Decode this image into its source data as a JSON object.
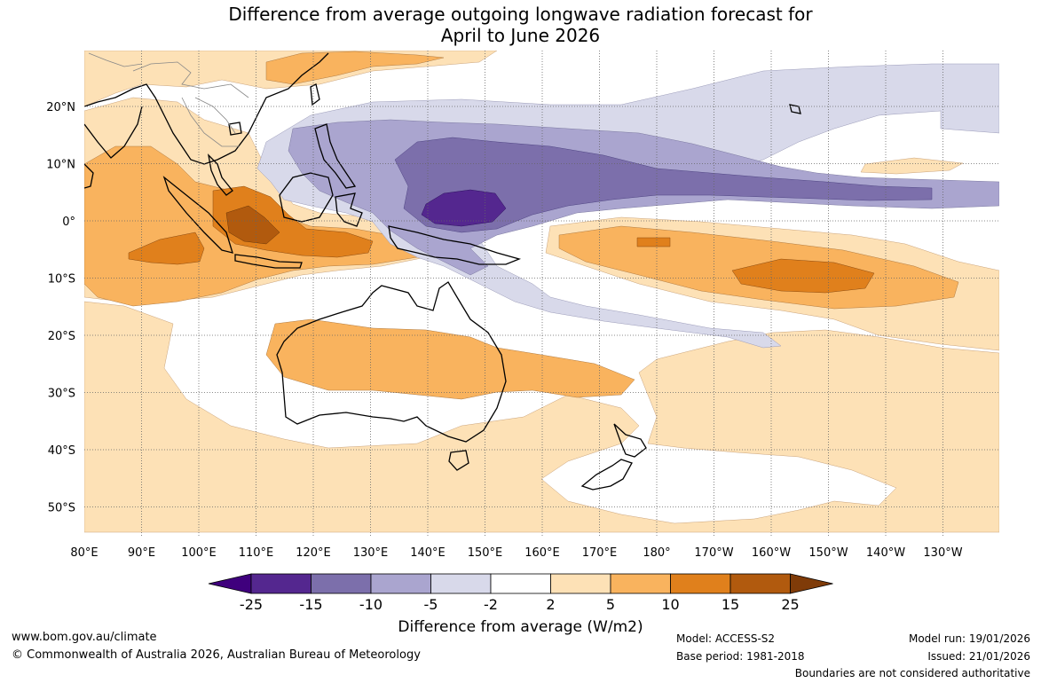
{
  "title": {
    "line1": "Difference from average outgoing longwave radiation forecast for",
    "line2": "April to June 2026"
  },
  "map": {
    "lon_labels": [
      "80°E",
      "90°E",
      "100°E",
      "110°E",
      "120°E",
      "130°E",
      "140°E",
      "150°E",
      "160°E",
      "170°E",
      "180°",
      "170°W",
      "160°W",
      "150°W",
      "140°W",
      "130°W"
    ],
    "lat_labels": [
      "20°N",
      "10°N",
      "0°",
      "10°S",
      "20°S",
      "30°S",
      "40°S",
      "50°S"
    ],
    "colors": {
      "grid": "#666666",
      "coast": "#000000",
      "asia_border": "#888888"
    },
    "anomaly_regions": [
      {
        "category": "+2 to +5",
        "color": "#fde1b6",
        "region": "Australia, Southern Ocean and SW Pacific"
      },
      {
        "category": "+2 to +5",
        "color": "#fde1b6",
        "region": "Indian Ocean and Southeast Asia"
      },
      {
        "category": "+2 to +5",
        "color": "#fde1b6",
        "region": "Central tropical Pacific"
      },
      {
        "category": "+5 to +10",
        "color": "#f9b35e",
        "region": "Eastern Indian Ocean"
      },
      {
        "category": "+5 to +10",
        "color": "#f9b35e",
        "region": "Australia to Tasman Sea"
      },
      {
        "category": "+5 to +10",
        "color": "#f9b35e",
        "region": "Central tropical Pacific"
      },
      {
        "category": "+10 to +15",
        "color": "#e0801c",
        "region": "Maritime Continent"
      },
      {
        "category": "+10 to +15",
        "color": "#e0801c",
        "region": "Central tropical Pacific"
      },
      {
        "category": "+15 to +25",
        "color": "#b15a0e",
        "region": "Java Sea"
      },
      {
        "category": "-2 to -5",
        "color": "#d8d9ea",
        "region": "North Pacific and Coral Sea"
      },
      {
        "category": "-5 to -10",
        "color": "#aaa5cf",
        "region": "Western Pacific warm pool"
      },
      {
        "category": "-10 to -15",
        "color": "#7c6fab",
        "region": "Western Pacific warm pool"
      },
      {
        "category": "-15 to -25",
        "color": "#54278f",
        "region": "Near 145°E, equator"
      }
    ]
  },
  "colorbar": {
    "label": "Difference from average (W/m2)",
    "ticks": [
      "-25",
      "-15",
      "-10",
      "-5",
      "-2",
      "2",
      "5",
      "10",
      "15",
      "25"
    ],
    "colors": [
      "#3f007d",
      "#54278f",
      "#7c6fab",
      "#aaa5cf",
      "#d8d9ea",
      "#ffffff",
      "#fde1b6",
      "#f9b35e",
      "#e0801c",
      "#b15a0e",
      "#7f3b08"
    ]
  },
  "footer": {
    "url": "www.bom.gov.au/climate",
    "copyright": "© Commonwealth of Australia 2026, Australian Bureau of Meteorology",
    "model": "Model: ACCESS-S2",
    "base_period": "Base period: 1981-2018",
    "model_run": "Model run: 19/01/2026",
    "issued": "Issued: 21/01/2026",
    "disclaimer": "Boundaries are not considered authoritative"
  }
}
